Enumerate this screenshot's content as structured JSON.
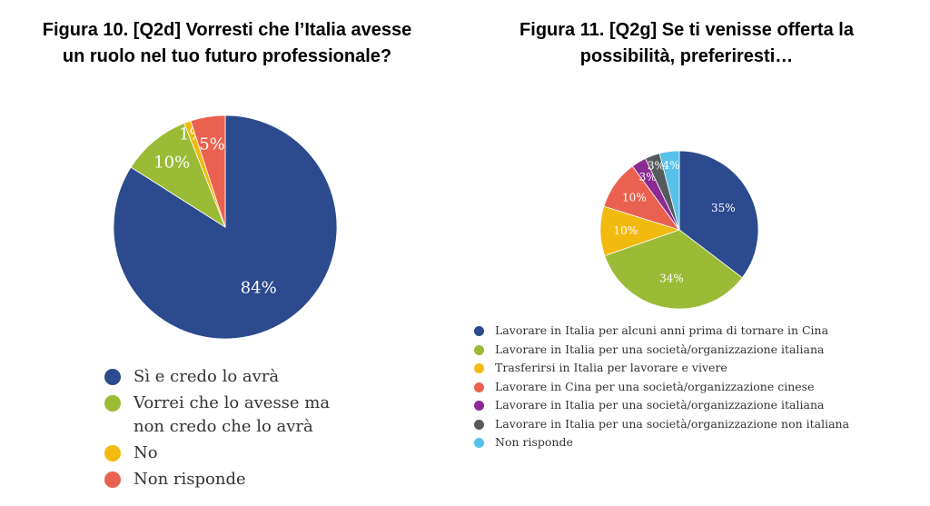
{
  "chart_data": [
    {
      "type": "pie",
      "title": "Figura 10. [Q2d] Vorresti che l’Italia avesse un ruolo nel tuo futuro professionale?",
      "title_lines": [
        "Figura 10. [Q2d] Vorresti che l’Italia avesse",
        "un ruolo nel tuo futuro professionale?"
      ],
      "legend_position": "bottom",
      "series": [
        {
          "name": "Sì e credo lo avrà",
          "value": 84,
          "label": "84%",
          "color": "#2c4a8e"
        },
        {
          "name": "Vorrei che lo avesse ma non credo che lo avrà",
          "value": 10,
          "label": "10%",
          "color": "#9bbb36"
        },
        {
          "name": "No",
          "value": 1,
          "label": "1%",
          "color": "#f2b90f"
        },
        {
          "name": "Non risponde",
          "value": 5,
          "label": "5%",
          "color": "#eb6150"
        }
      ]
    },
    {
      "type": "pie",
      "title": "Figura 11. [Q2g] Se ti venisse offerta la possibilità, preferiresti…",
      "title_lines": [
        "Figura 11. [Q2g] Se ti venisse offerta la",
        "possibilità, preferiresti…"
      ],
      "legend_position": "bottom",
      "series": [
        {
          "name": "Lavorare in Italia per alcuni anni prima di tornare in Cina",
          "value": 35,
          "label": "35%",
          "color": "#2c4a8e"
        },
        {
          "name": "Lavorare in Italia per una società/organizzazione italiana",
          "value": 34,
          "label": "34%",
          "color": "#9bbb36"
        },
        {
          "name": "Trasferirsi in Italia per lavorare e vivere",
          "value": 10,
          "label": "10%",
          "color": "#f2b90f"
        },
        {
          "name": "Lavorare in Cina per una società/organizzazione cinese",
          "value": 10,
          "label": "10%",
          "color": "#eb6150"
        },
        {
          "name": "Lavorare in Italia per una società/organizzazione italiana",
          "value": 3,
          "label": "3%",
          "color": "#8b2a93"
        },
        {
          "name": "Lavorare in Italia per una società/organizzazione non italiana",
          "value": 3,
          "label": "3%",
          "color": "#555a5d"
        },
        {
          "name": "Non risponde",
          "value": 4,
          "label": "4%",
          "color": "#56c2ea"
        }
      ]
    }
  ],
  "legend_left_lines": [
    [
      "Sì e credo lo avrà"
    ],
    [
      "Vorrei che lo avesse ma",
      "non credo che lo avrà"
    ],
    [
      "No"
    ],
    [
      "Non risponde"
    ]
  ]
}
